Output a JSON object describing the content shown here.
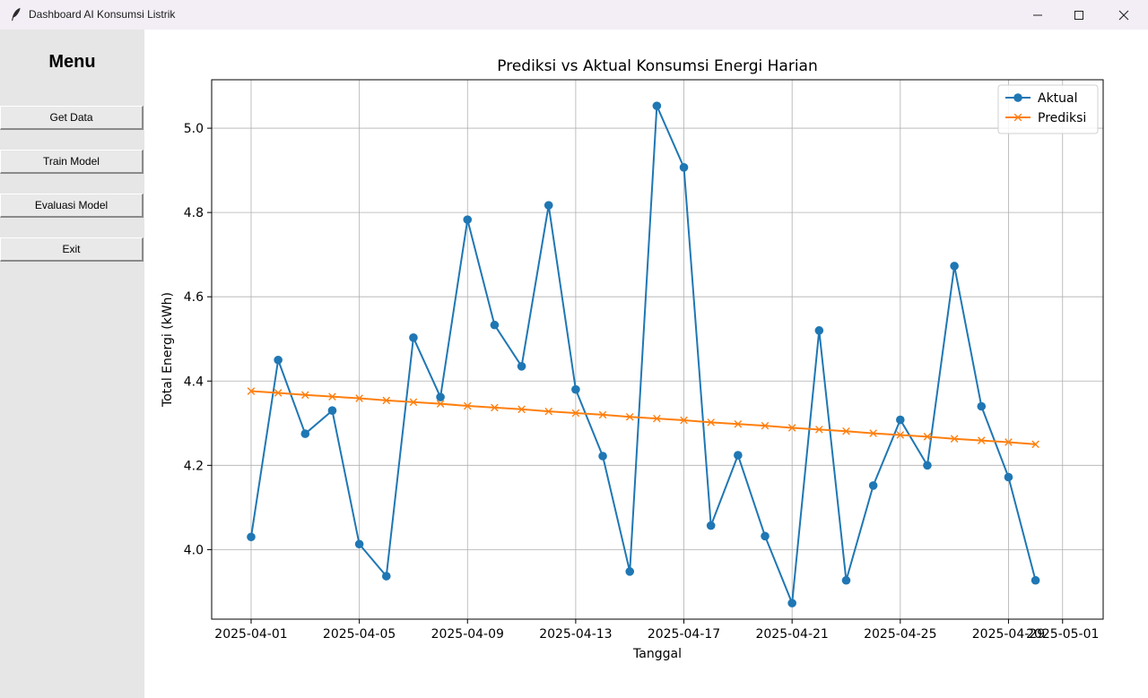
{
  "window": {
    "title": "Dashboard AI Konsumsi Listrik"
  },
  "sidebar": {
    "title": "Menu",
    "buttons": [
      {
        "label": "Get Data"
      },
      {
        "label": "Train Model"
      },
      {
        "label": "Evaluasi Model"
      },
      {
        "label": "Exit"
      }
    ]
  },
  "colors": {
    "aktual": "#1f77b4",
    "prediksi": "#ff7f0e",
    "grid": "#b0b0b0"
  },
  "chart_data": {
    "type": "line",
    "title": "Prediksi vs Aktual Konsumsi Energi Harian",
    "xlabel": "Tanggal",
    "ylabel": "Total Energi (kWh)",
    "xlim": [
      "2025-03-30T13:00",
      "2025-05-02T12:00"
    ],
    "ylim": [
      3.835,
      5.115
    ],
    "x_ticks": [
      "2025-04-01",
      "2025-04-05",
      "2025-04-09",
      "2025-04-13",
      "2025-04-17",
      "2025-04-21",
      "2025-04-25",
      "2025-04-29",
      "2025-05-01"
    ],
    "y_ticks": [
      4.0,
      4.2,
      4.4,
      4.6,
      4.8,
      5.0
    ],
    "grid": true,
    "legend_position": "top-right",
    "x": [
      "2025-04-01",
      "2025-04-02",
      "2025-04-03",
      "2025-04-04",
      "2025-04-05",
      "2025-04-06",
      "2025-04-07",
      "2025-04-08",
      "2025-04-09",
      "2025-04-10",
      "2025-04-11",
      "2025-04-12",
      "2025-04-13",
      "2025-04-14",
      "2025-04-15",
      "2025-04-16",
      "2025-04-17",
      "2025-04-18",
      "2025-04-19",
      "2025-04-20",
      "2025-04-21",
      "2025-04-22",
      "2025-04-23",
      "2025-04-24",
      "2025-04-25",
      "2025-04-26",
      "2025-04-27",
      "2025-04-28",
      "2025-04-29",
      "2025-04-30"
    ],
    "series": [
      {
        "name": "Aktual",
        "marker": "o",
        "values": [
          4.03,
          4.45,
          4.275,
          4.33,
          4.013,
          3.937,
          4.503,
          4.362,
          4.783,
          4.533,
          4.435,
          4.817,
          4.38,
          4.222,
          3.948,
          5.053,
          4.907,
          4.057,
          4.224,
          4.032,
          3.873,
          4.52,
          3.927,
          4.152,
          4.308,
          4.2,
          4.673,
          4.34,
          4.172,
          3.927
        ]
      },
      {
        "name": "Prediksi",
        "marker": "x",
        "values": [
          4.376,
          4.372,
          4.367,
          4.363,
          4.359,
          4.354,
          4.35,
          4.346,
          4.341,
          4.337,
          4.333,
          4.328,
          4.324,
          4.32,
          4.315,
          4.311,
          4.307,
          4.302,
          4.298,
          4.294,
          4.289,
          4.285,
          4.281,
          4.276,
          4.272,
          4.268,
          4.263,
          4.259,
          4.255,
          4.25
        ]
      }
    ]
  }
}
